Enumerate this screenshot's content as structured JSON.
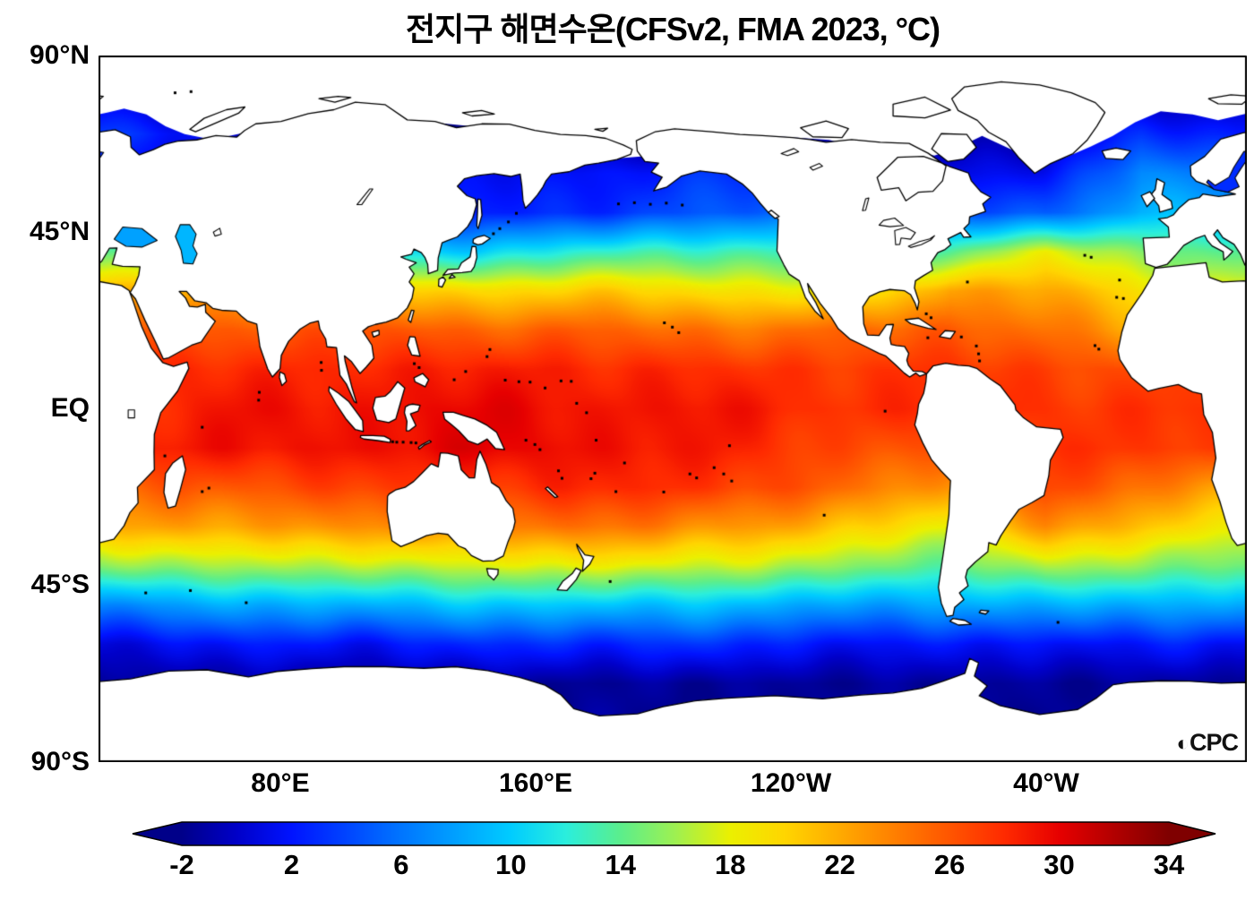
{
  "title": "전지구 해면수온(CFSv2, FMA 2023, °C)",
  "logo": {
    "symbol": "◐",
    "text": "CPC"
  },
  "axes": {
    "lat_labels": [
      "90°N",
      "45°N",
      "EQ",
      "45°S",
      "90°S"
    ],
    "lon_labels": [
      "80°E",
      "160°E",
      "120°W",
      "40°W"
    ]
  },
  "colorbar": {
    "min": -2,
    "max": 34,
    "ticks": [
      -2,
      2,
      6,
      10,
      14,
      18,
      22,
      26,
      30,
      34
    ],
    "stops": [
      [
        -2,
        "#000089"
      ],
      [
        0,
        "#0000c8"
      ],
      [
        2,
        "#0013ff"
      ],
      [
        6,
        "#0075ff"
      ],
      [
        10,
        "#00ccff"
      ],
      [
        12,
        "#2aeedd"
      ],
      [
        14,
        "#5bee8c"
      ],
      [
        16,
        "#9ef051"
      ],
      [
        18,
        "#ebf000"
      ],
      [
        20,
        "#ffd500"
      ],
      [
        22,
        "#ffaa00"
      ],
      [
        24,
        "#ff7f00"
      ],
      [
        26,
        "#ff5500"
      ],
      [
        28,
        "#ff2a00"
      ],
      [
        30,
        "#e60000"
      ],
      [
        32,
        "#b20000"
      ],
      [
        34,
        "#7f0000"
      ]
    ]
  },
  "chart_data": {
    "type": "heatmap",
    "title": "전지구 해면수온(CFSv2, FMA 2023, °C)",
    "variable": "global sea surface temperature",
    "units": "°C",
    "model": "CFSv2",
    "period": "FMA 2023",
    "lon_range": [
      23,
      383
    ],
    "lat_range": [
      -90,
      90
    ],
    "xticks": [
      {
        "lon": 80,
        "label": "80°E"
      },
      {
        "lon": 160,
        "label": "160°E"
      },
      {
        "lon": 240,
        "label": "120°W"
      },
      {
        "lon": 320,
        "label": "40°W"
      }
    ],
    "yticks": [
      {
        "lat": 90,
        "label": "90°N"
      },
      {
        "lat": 45,
        "label": "45°N"
      },
      {
        "lat": 0,
        "label": "EQ"
      },
      {
        "lat": -45,
        "label": "45°S"
      },
      {
        "lat": -90,
        "label": "90°S"
      }
    ],
    "colorbar_ticks": [
      -2,
      2,
      6,
      10,
      14,
      18,
      22,
      26,
      30,
      34
    ],
    "grid": {
      "lats": [
        90,
        80,
        70,
        60,
        50,
        40,
        30,
        20,
        10,
        0,
        -10,
        -20,
        -30,
        -40,
        -50,
        -60,
        -70,
        -80,
        -90
      ],
      "lons": [
        20,
        50,
        80,
        110,
        140,
        170,
        200,
        230,
        260,
        290,
        320,
        350,
        380
      ],
      "sst_c": [
        [
          -1.8,
          -1.8,
          -1.8,
          -1.8,
          -1.8,
          -1.8,
          -1.8,
          -1.8,
          -1.8,
          -1.8,
          -1.8,
          -1.8,
          -1.8
        ],
        [
          0,
          -1.5,
          -1.8,
          -1.8,
          -1.8,
          -1.8,
          -1.8,
          -1.8,
          -1.8,
          -1.8,
          -1.8,
          -1,
          0
        ],
        [
          4,
          2,
          -1.8,
          -1.8,
          -1.8,
          -1.8,
          -1.8,
          -1.8,
          -1.8,
          -1.8,
          -1,
          3,
          2
        ],
        [
          2,
          1,
          0,
          0.5,
          1,
          2,
          2.5,
          3,
          2,
          0.5,
          2,
          7,
          5
        ],
        [
          6,
          4,
          3,
          2,
          2,
          3,
          4,
          5,
          6,
          4,
          5,
          9,
          8
        ],
        [
          14,
          12,
          11,
          11,
          10,
          12,
          13,
          13,
          12,
          14,
          18,
          15,
          14
        ],
        [
          21,
          22,
          22,
          21,
          20,
          20,
          20,
          19,
          18,
          23,
          22,
          19,
          18
        ],
        [
          25,
          26,
          26,
          26,
          25.5,
          25.5,
          25,
          24.5,
          25,
          26,
          24.5,
          22,
          21
        ],
        [
          27,
          28,
          28,
          28.5,
          28.5,
          28.5,
          28,
          27.5,
          27.5,
          27.5,
          27,
          26.5,
          26
        ],
        [
          27.5,
          28.5,
          29,
          29.5,
          29.5,
          29.5,
          29,
          28.5,
          28,
          28,
          28,
          27.5,
          27
        ],
        [
          28,
          29,
          29,
          29.5,
          30,
          29.5,
          29,
          28,
          26.5,
          26,
          28,
          27.5,
          26.5
        ],
        [
          24.5,
          26,
          26.5,
          27,
          27.5,
          28,
          28,
          27,
          24.5,
          23,
          26.5,
          25,
          22
        ],
        [
          21,
          22.5,
          23,
          23,
          24,
          24.5,
          24,
          23,
          20,
          18.5,
          23,
          21,
          19
        ],
        [
          15,
          16,
          16.5,
          16.5,
          17.5,
          18,
          17.5,
          17,
          15,
          14,
          16.5,
          15.5,
          14.5
        ],
        [
          7,
          8,
          8.5,
          9,
          9.5,
          10,
          9.5,
          9,
          8,
          8,
          9,
          8.5,
          8
        ],
        [
          1,
          1.5,
          2,
          2,
          2.5,
          3,
          3,
          2.5,
          2,
          1.5,
          2,
          2,
          1.5
        ],
        [
          -1.5,
          -1.5,
          -1.5,
          -1.5,
          -1.5,
          -1.5,
          -1.5,
          -1.5,
          -1.5,
          -1.5,
          -1.5,
          -1.5,
          -1.5
        ],
        [
          -1.8,
          -1.8,
          -1.8,
          -1.8,
          -1.8,
          -1.8,
          -1.8,
          -1.8,
          -1.8,
          -1.8,
          -1.8,
          -1.8,
          -1.8
        ],
        [
          -1.8,
          -1.8,
          -1.8,
          -1.8,
          -1.8,
          -1.8,
          -1.8,
          -1.8,
          -1.8,
          -1.8,
          -1.8,
          -1.8,
          -1.8
        ]
      ]
    }
  }
}
